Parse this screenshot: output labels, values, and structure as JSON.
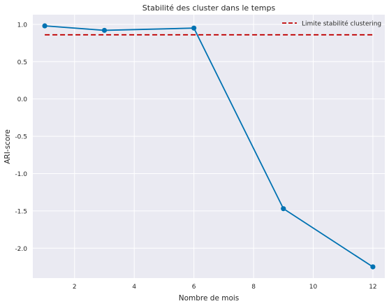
{
  "colors": {
    "plot_background": "#eaeaf2",
    "grid": "#ffffff",
    "series_line": "#0072b2",
    "threshold_line": "#c00000"
  },
  "chart_data": {
    "type": "line",
    "title": "Stabilité des cluster dans le temps",
    "xlabel": "Nombre de mois",
    "ylabel": "ARI-score",
    "xlim": [
      0.6,
      12.4
    ],
    "ylim": [
      -2.4,
      1.13
    ],
    "x_ticks": [
      2,
      4,
      6,
      8,
      10,
      12
    ],
    "y_ticks": [
      1.0,
      0.5,
      0.0,
      -0.5,
      -1.0,
      -1.5,
      -2.0
    ],
    "x_tick_labels": [
      "2",
      "4",
      "6",
      "8",
      "10",
      "12"
    ],
    "y_tick_labels": [
      "1.0",
      "0.5",
      "0.0",
      "-0.5",
      "-1.0",
      "-1.5",
      "-2.0"
    ],
    "grid": true,
    "legend_position": "top-right",
    "series": [
      {
        "style": "solid line with circle markers",
        "x": [
          1,
          3,
          6,
          9,
          12
        ],
        "values": [
          0.98,
          0.92,
          0.95,
          -1.47,
          -2.25
        ]
      }
    ],
    "reference_lines": [
      {
        "name": "Limite stabilité clustering",
        "style": "dashed",
        "x_range": [
          1,
          12
        ],
        "y": 0.86
      }
    ]
  }
}
